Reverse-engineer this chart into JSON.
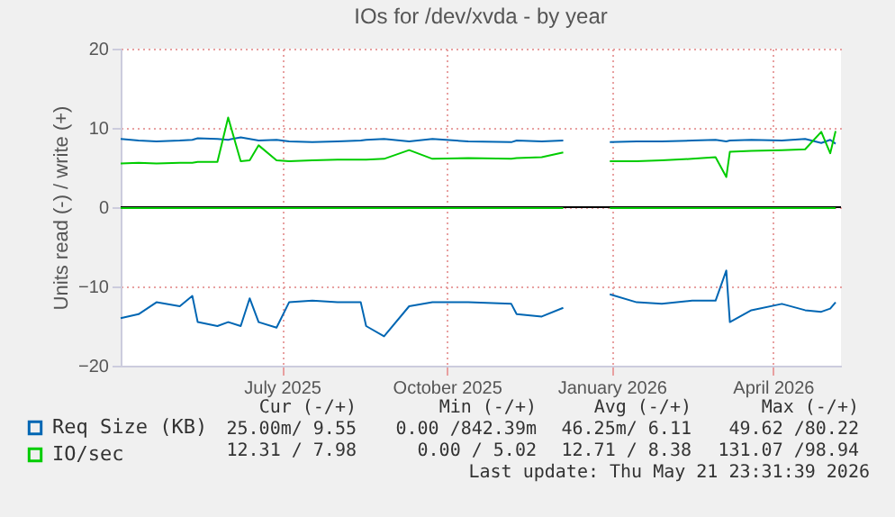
{
  "chart_data": {
    "type": "line",
    "title": "IOs for /dev/xvda - by year",
    "ylabel": "Units read (-) / write (+)",
    "x": [
      "2025-04-17",
      "2025-04-27",
      "2025-05-07",
      "2025-05-20",
      "2025-05-27",
      "2025-05-30",
      "2025-06-10",
      "2025-06-16",
      "2025-06-23",
      "2025-06-28",
      "2025-07-03",
      "2025-07-13",
      "2025-07-20",
      "2025-08-02",
      "2025-08-16",
      "2025-08-29",
      "2025-09-01",
      "2025-09-11",
      "2025-09-25",
      "2025-10-08",
      "2025-10-28",
      "2025-11-21",
      "2025-11-24",
      "2025-12-08",
      "2025-12-20",
      "2026-01-02",
      "2026-01-15",
      "2026-01-30",
      "2026-02-13",
      "2026-03-02",
      "2026-03-15",
      "2026-03-21",
      "2026-03-23",
      "2026-04-04",
      "2026-04-21",
      "2026-05-04",
      "2026-05-13",
      "2026-05-18",
      "2026-05-21"
    ],
    "series": [
      {
        "name": "Req Size (KB)",
        "color": "#0066b3",
        "values": [
          8.6,
          8.4,
          8.3,
          8.4,
          8.5,
          8.7,
          8.6,
          8.5,
          8.8,
          8.6,
          8.4,
          8.5,
          8.3,
          8.2,
          8.3,
          8.4,
          8.5,
          8.6,
          8.3,
          8.6,
          8.3,
          8.2,
          8.4,
          8.3,
          8.4,
          null,
          8.2,
          8.3,
          8.3,
          8.4,
          8.5,
          8.3,
          8.4,
          8.5,
          8.4,
          8.6,
          8.1,
          8.5,
          8.0
        ]
      },
      {
        "color": "#0066b3",
        "values": [
          -14,
          -13.5,
          -12,
          -12.5,
          -11.2,
          -14.5,
          -15,
          -14.5,
          -15,
          -11.5,
          -14.5,
          -15.2,
          -12,
          -11.8,
          -12,
          -12,
          -15,
          -16.3,
          -12.5,
          -12,
          -12,
          -12.2,
          -13.5,
          -13.8,
          -12.7,
          null,
          -11,
          -12,
          -12.2,
          -11.8,
          -11.8,
          -8,
          -14.5,
          -13,
          -12.2,
          -13,
          -13.2,
          -12.8,
          -12
        ]
      },
      {
        "name": "IO/sec",
        "color": "#00cc00",
        "values": [
          5.5,
          5.6,
          5.5,
          5.6,
          5.6,
          5.7,
          5.7,
          11.3,
          5.8,
          5.9,
          7.8,
          5.9,
          5.8,
          5.9,
          6.0,
          6.0,
          6.0,
          6.1,
          7.2,
          6.1,
          6.2,
          6.1,
          6.2,
          6.3,
          6.9,
          null,
          5.8,
          5.8,
          5.9,
          6.1,
          6.3,
          3.8,
          7.0,
          7.1,
          7.2,
          7.3,
          9.5,
          6.8,
          9.6
        ]
      },
      {
        "color": "#00cc00",
        "values": [
          -0.1,
          -0.1,
          -0.1,
          -0.1,
          -0.1,
          -0.1,
          -0.1,
          -0.1,
          -0.1,
          -0.1,
          -0.1,
          -0.1,
          -0.1,
          -0.1,
          -0.1,
          -0.1,
          -0.1,
          -0.1,
          -0.1,
          -0.1,
          -0.1,
          -0.1,
          -0.1,
          -0.1,
          -0.1,
          null,
          -0.1,
          -0.1,
          -0.1,
          -0.1,
          -0.1,
          -0.1,
          -0.1,
          -0.1,
          -0.1,
          -0.1,
          -0.1,
          -0.1,
          -0.1
        ]
      }
    ],
    "xlim": [
      "2025-04-17",
      "2026-05-24"
    ],
    "xticks": [
      {
        "value": "2025-07-16",
        "label": "July 2025"
      },
      {
        "value": "2025-10-16",
        "label": "October 2025"
      },
      {
        "value": "2026-01-16",
        "label": "January 2026"
      },
      {
        "value": "2026-04-16",
        "label": "April 2026"
      }
    ],
    "ylim": [
      -20,
      20
    ],
    "yticks": [
      -20,
      -10,
      0,
      10,
      20
    ],
    "ref_lines": [
      {
        "axis": "y",
        "value": 0,
        "color": "#000000"
      }
    ],
    "grid": true,
    "legend": "bottom left",
    "annotations": [
      "Cur (-/+)",
      "Min (-/+)",
      "Avg (-/+)",
      "Max (-/+)",
      "25.00m/ 9.55",
      "0.00 /842.39m",
      "46.25m/ 6.11",
      "49.62 /80.22",
      "12.31 / 7.98",
      "0.00 / 5.02",
      "12.71 / 8.38",
      "131.07 /98.94",
      "Last update: Thu May 21 23:31:39 2026"
    ]
  }
}
